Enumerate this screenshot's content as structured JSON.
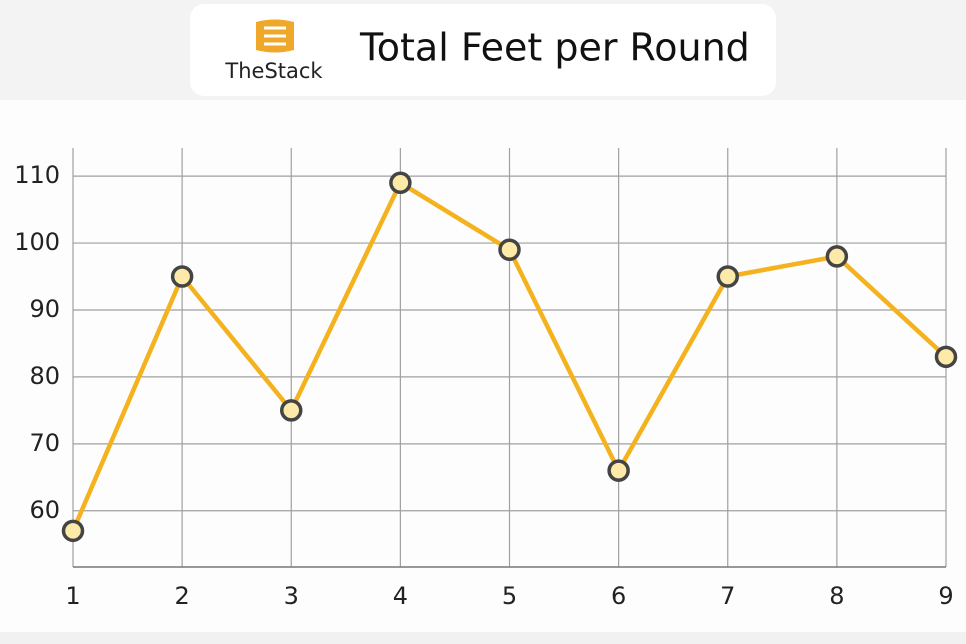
{
  "header": {
    "logo": "TheStack"
  },
  "chart_data": {
    "type": "line",
    "title": "Total Feet per Round",
    "x": [
      1,
      2,
      3,
      4,
      5,
      6,
      7,
      8,
      9
    ],
    "values": [
      57,
      95,
      75,
      109,
      99,
      66,
      95,
      98,
      83
    ],
    "color": "#f5b21f",
    "marker_color": "#fde9a8",
    "xlim": [
      1,
      9
    ],
    "xticks": [
      1,
      2,
      3,
      4,
      5,
      6,
      7,
      8,
      9
    ],
    "ylim": [
      51.6,
      114.2
    ],
    "yticks": [
      60,
      70,
      80,
      90,
      100,
      110
    ],
    "grid": true
  }
}
